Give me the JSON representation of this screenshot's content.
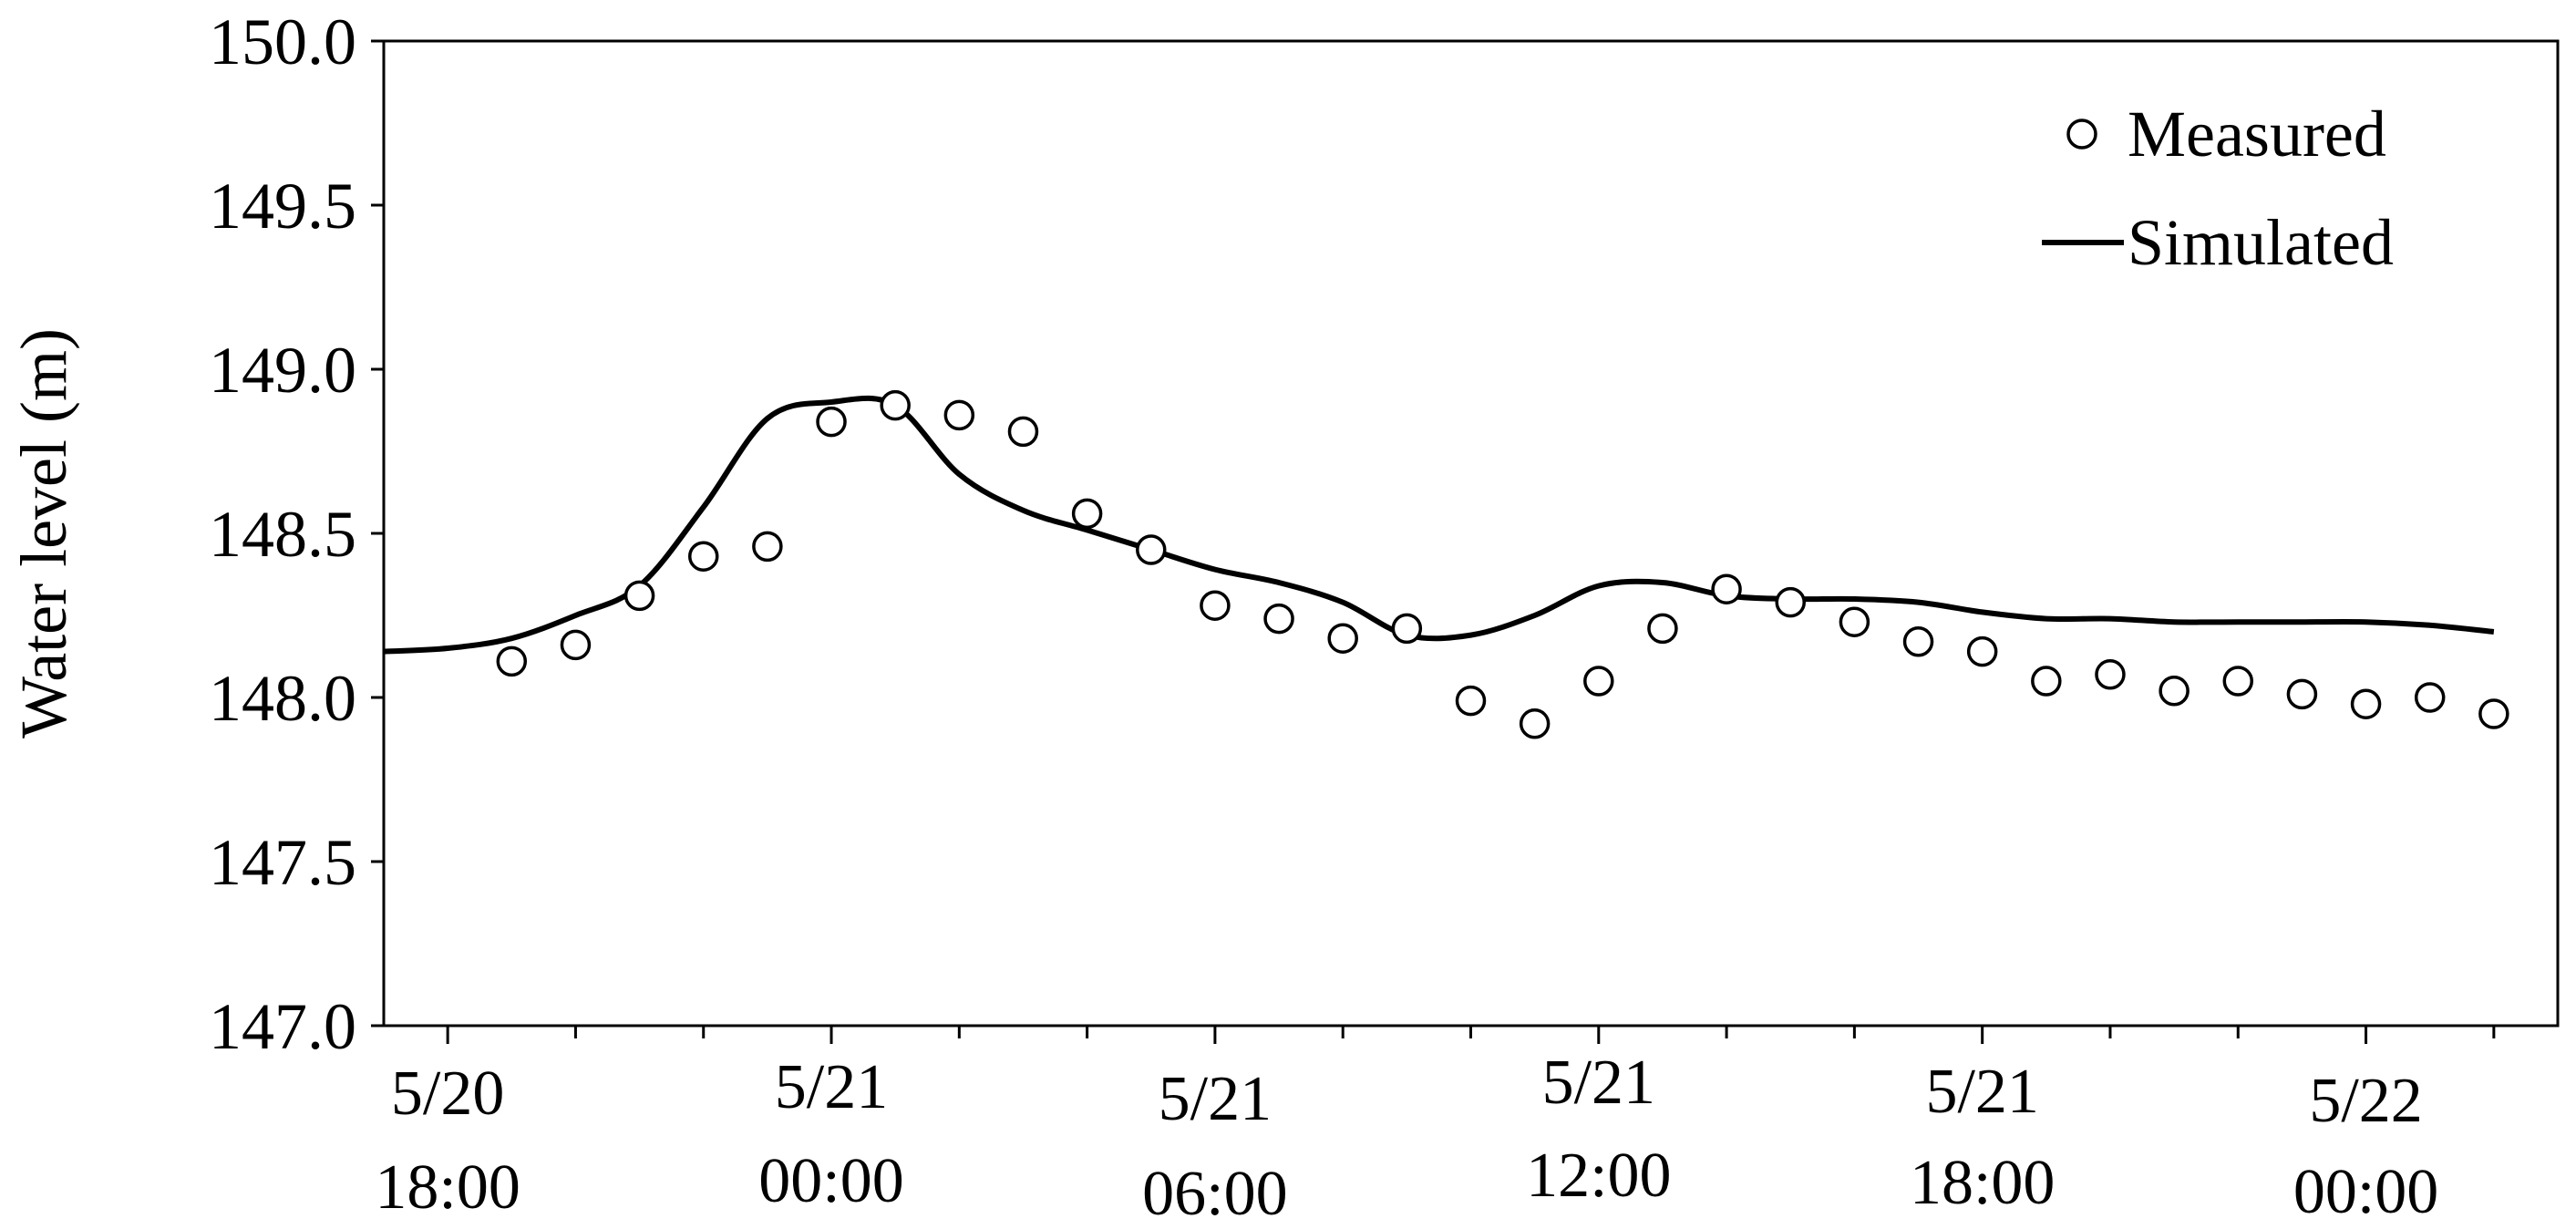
{
  "chart_data": {
    "type": "line",
    "ylabel": "Water level (m)",
    "xlabel": "",
    "ylim": [
      147.0,
      150.0
    ],
    "yticks": [
      "147.0",
      "147.5",
      "148.0",
      "148.5",
      "149.0",
      "149.5",
      "150.0"
    ],
    "xlim_hours": [
      -1,
      33
    ],
    "xticks": [
      {
        "date": "5/20",
        "time": "18:00"
      },
      {
        "date": "5/21",
        "time": "00:00"
      },
      {
        "date": "5/21",
        "time": "06:00"
      },
      {
        "date": "5/21",
        "time": "12:00"
      },
      {
        "date": "5/21",
        "time": "18:00"
      },
      {
        "date": "5/22",
        "time": "00:00"
      }
    ],
    "legend": {
      "position": "top-right",
      "measured": "Measured",
      "simulated": "Simulated"
    },
    "series": [
      {
        "name": "Measured",
        "style": "open-circle",
        "x": [
          "5/20 18:00",
          "5/20 19:00",
          "5/20 20:00",
          "5/20 21:00",
          "5/20 22:00",
          "5/20 23:00",
          "5/21 00:00",
          "5/21 01:00",
          "5/21 02:00",
          "5/21 03:00",
          "5/21 04:00",
          "5/21 05:00",
          "5/21 06:00",
          "5/21 07:00",
          "5/21 08:00",
          "5/21 09:00",
          "5/21 10:00",
          "5/21 11:00",
          "5/21 12:00",
          "5/21 13:00",
          "5/21 14:00",
          "5/21 15:00",
          "5/21 16:00",
          "5/21 17:00",
          "5/21 18:00",
          "5/21 19:00",
          "5/21 20:00",
          "5/21 21:00",
          "5/21 22:00",
          "5/21 23:00",
          "5/22 00:00",
          "5/22 01:00",
          "5/22 02:00"
        ],
        "values": [
          null,
          148.11,
          148.16,
          148.31,
          148.43,
          148.46,
          148.84,
          148.89,
          148.86,
          148.81,
          148.56,
          148.45,
          148.28,
          148.24,
          148.18,
          148.21,
          147.99,
          147.92,
          148.05,
          148.21,
          148.33,
          148.29,
          148.23,
          148.17,
          148.14,
          148.05,
          148.07,
          148.02,
          148.05,
          148.01,
          147.98,
          148.0,
          147.95
        ]
      },
      {
        "name": "Simulated",
        "style": "line",
        "color": "#000000",
        "x": [
          "5/20 17:00",
          "5/20 18:00",
          "5/20 19:00",
          "5/20 20:00",
          "5/20 21:00",
          "5/20 22:00",
          "5/20 23:00",
          "5/21 00:00",
          "5/21 01:00",
          "5/21 02:00",
          "5/21 03:00",
          "5/21 04:00",
          "5/21 05:00",
          "5/21 06:00",
          "5/21 07:00",
          "5/21 08:00",
          "5/21 09:00",
          "5/21 10:00",
          "5/21 11:00",
          "5/21 12:00",
          "5/21 13:00",
          "5/21 14:00",
          "5/21 15:00",
          "5/21 16:00",
          "5/21 17:00",
          "5/21 18:00",
          "5/21 19:00",
          "5/21 20:00",
          "5/21 21:00",
          "5/21 22:00",
          "5/21 23:00",
          "5/22 00:00",
          "5/22 01:00",
          "5/22 02:00"
        ],
        "values": [
          148.14,
          148.15,
          148.18,
          148.25,
          148.34,
          148.58,
          148.85,
          148.9,
          148.89,
          148.68,
          148.57,
          148.51,
          148.45,
          148.39,
          148.35,
          148.29,
          148.19,
          148.19,
          148.25,
          148.34,
          148.35,
          148.31,
          148.3,
          148.3,
          148.29,
          148.26,
          148.24,
          148.24,
          148.23,
          148.23,
          148.23,
          148.23,
          148.22,
          148.2
        ]
      }
    ]
  }
}
